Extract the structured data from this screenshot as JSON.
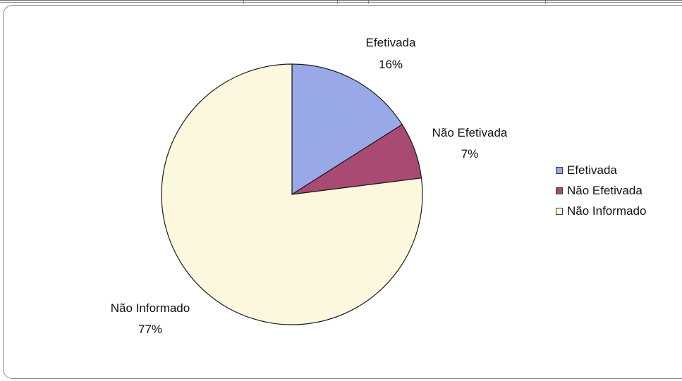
{
  "chart_data": {
    "type": "pie",
    "title": "",
    "slices": [
      {
        "name": "Efetivada",
        "value": 16,
        "label": "16%",
        "color": "#99A9E8"
      },
      {
        "name": "Não Efetivada",
        "value": 7,
        "label": "7%",
        "color": "#A84A72"
      },
      {
        "name": "Não Informado",
        "value": 77,
        "label": "77%",
        "color": "#FBF8DE"
      }
    ],
    "start_angle_deg": 0,
    "direction": "clockwise",
    "legend_position": "right",
    "data_labels": "category name and percentage"
  },
  "legend": {
    "items": [
      {
        "label": "Efetivada",
        "color": "#99A9E8"
      },
      {
        "label": "Não Efetivada",
        "color": "#A84A72"
      },
      {
        "label": "Não Informado",
        "color": "#FBF8DE"
      }
    ]
  }
}
